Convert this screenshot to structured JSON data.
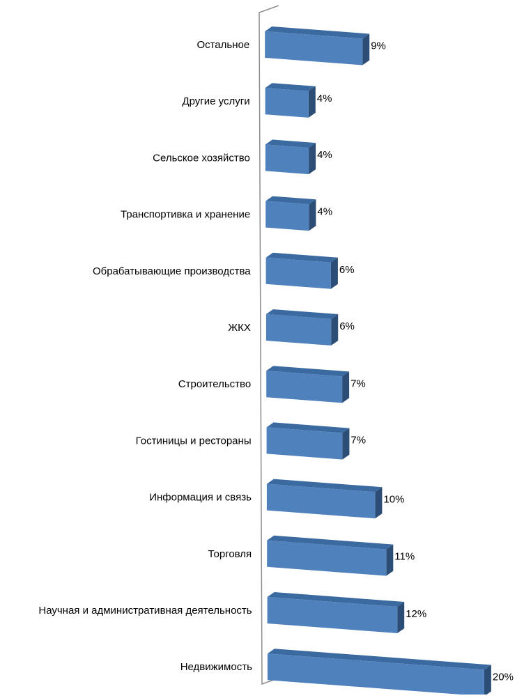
{
  "chart_data": {
    "type": "bar",
    "orientation": "horizontal",
    "three_d": true,
    "categories": [
      "Остальное",
      "Другие услуги",
      "Сельское хозяйство",
      "Транспортивка и хранение",
      "Обрабатывающие производства",
      "ЖКХ",
      "Строительство",
      "Гостиницы и рестораны",
      "Информация и  связь",
      "Торговля",
      "Научная и административная деятельность",
      "Недвижимость"
    ],
    "values": [
      9,
      4,
      4,
      4,
      6,
      6,
      7,
      7,
      10,
      11,
      12,
      20
    ],
    "data_labels": [
      "9%",
      "4%",
      "4%",
      "4%",
      "6%",
      "6%",
      "7%",
      "7%",
      "10%",
      "11%",
      "12%",
      "20%"
    ],
    "value_unit": "%",
    "xlim": [
      0,
      20
    ],
    "grid": false,
    "legend": "none",
    "title": "",
    "xlabel": "",
    "ylabel": "",
    "colors": {
      "bar_front": "#4f81bd",
      "bar_top": "#3b6aa0",
      "bar_side": "#2c4d75",
      "axis_wall": "#8c8c8c",
      "text": "#000000"
    }
  }
}
